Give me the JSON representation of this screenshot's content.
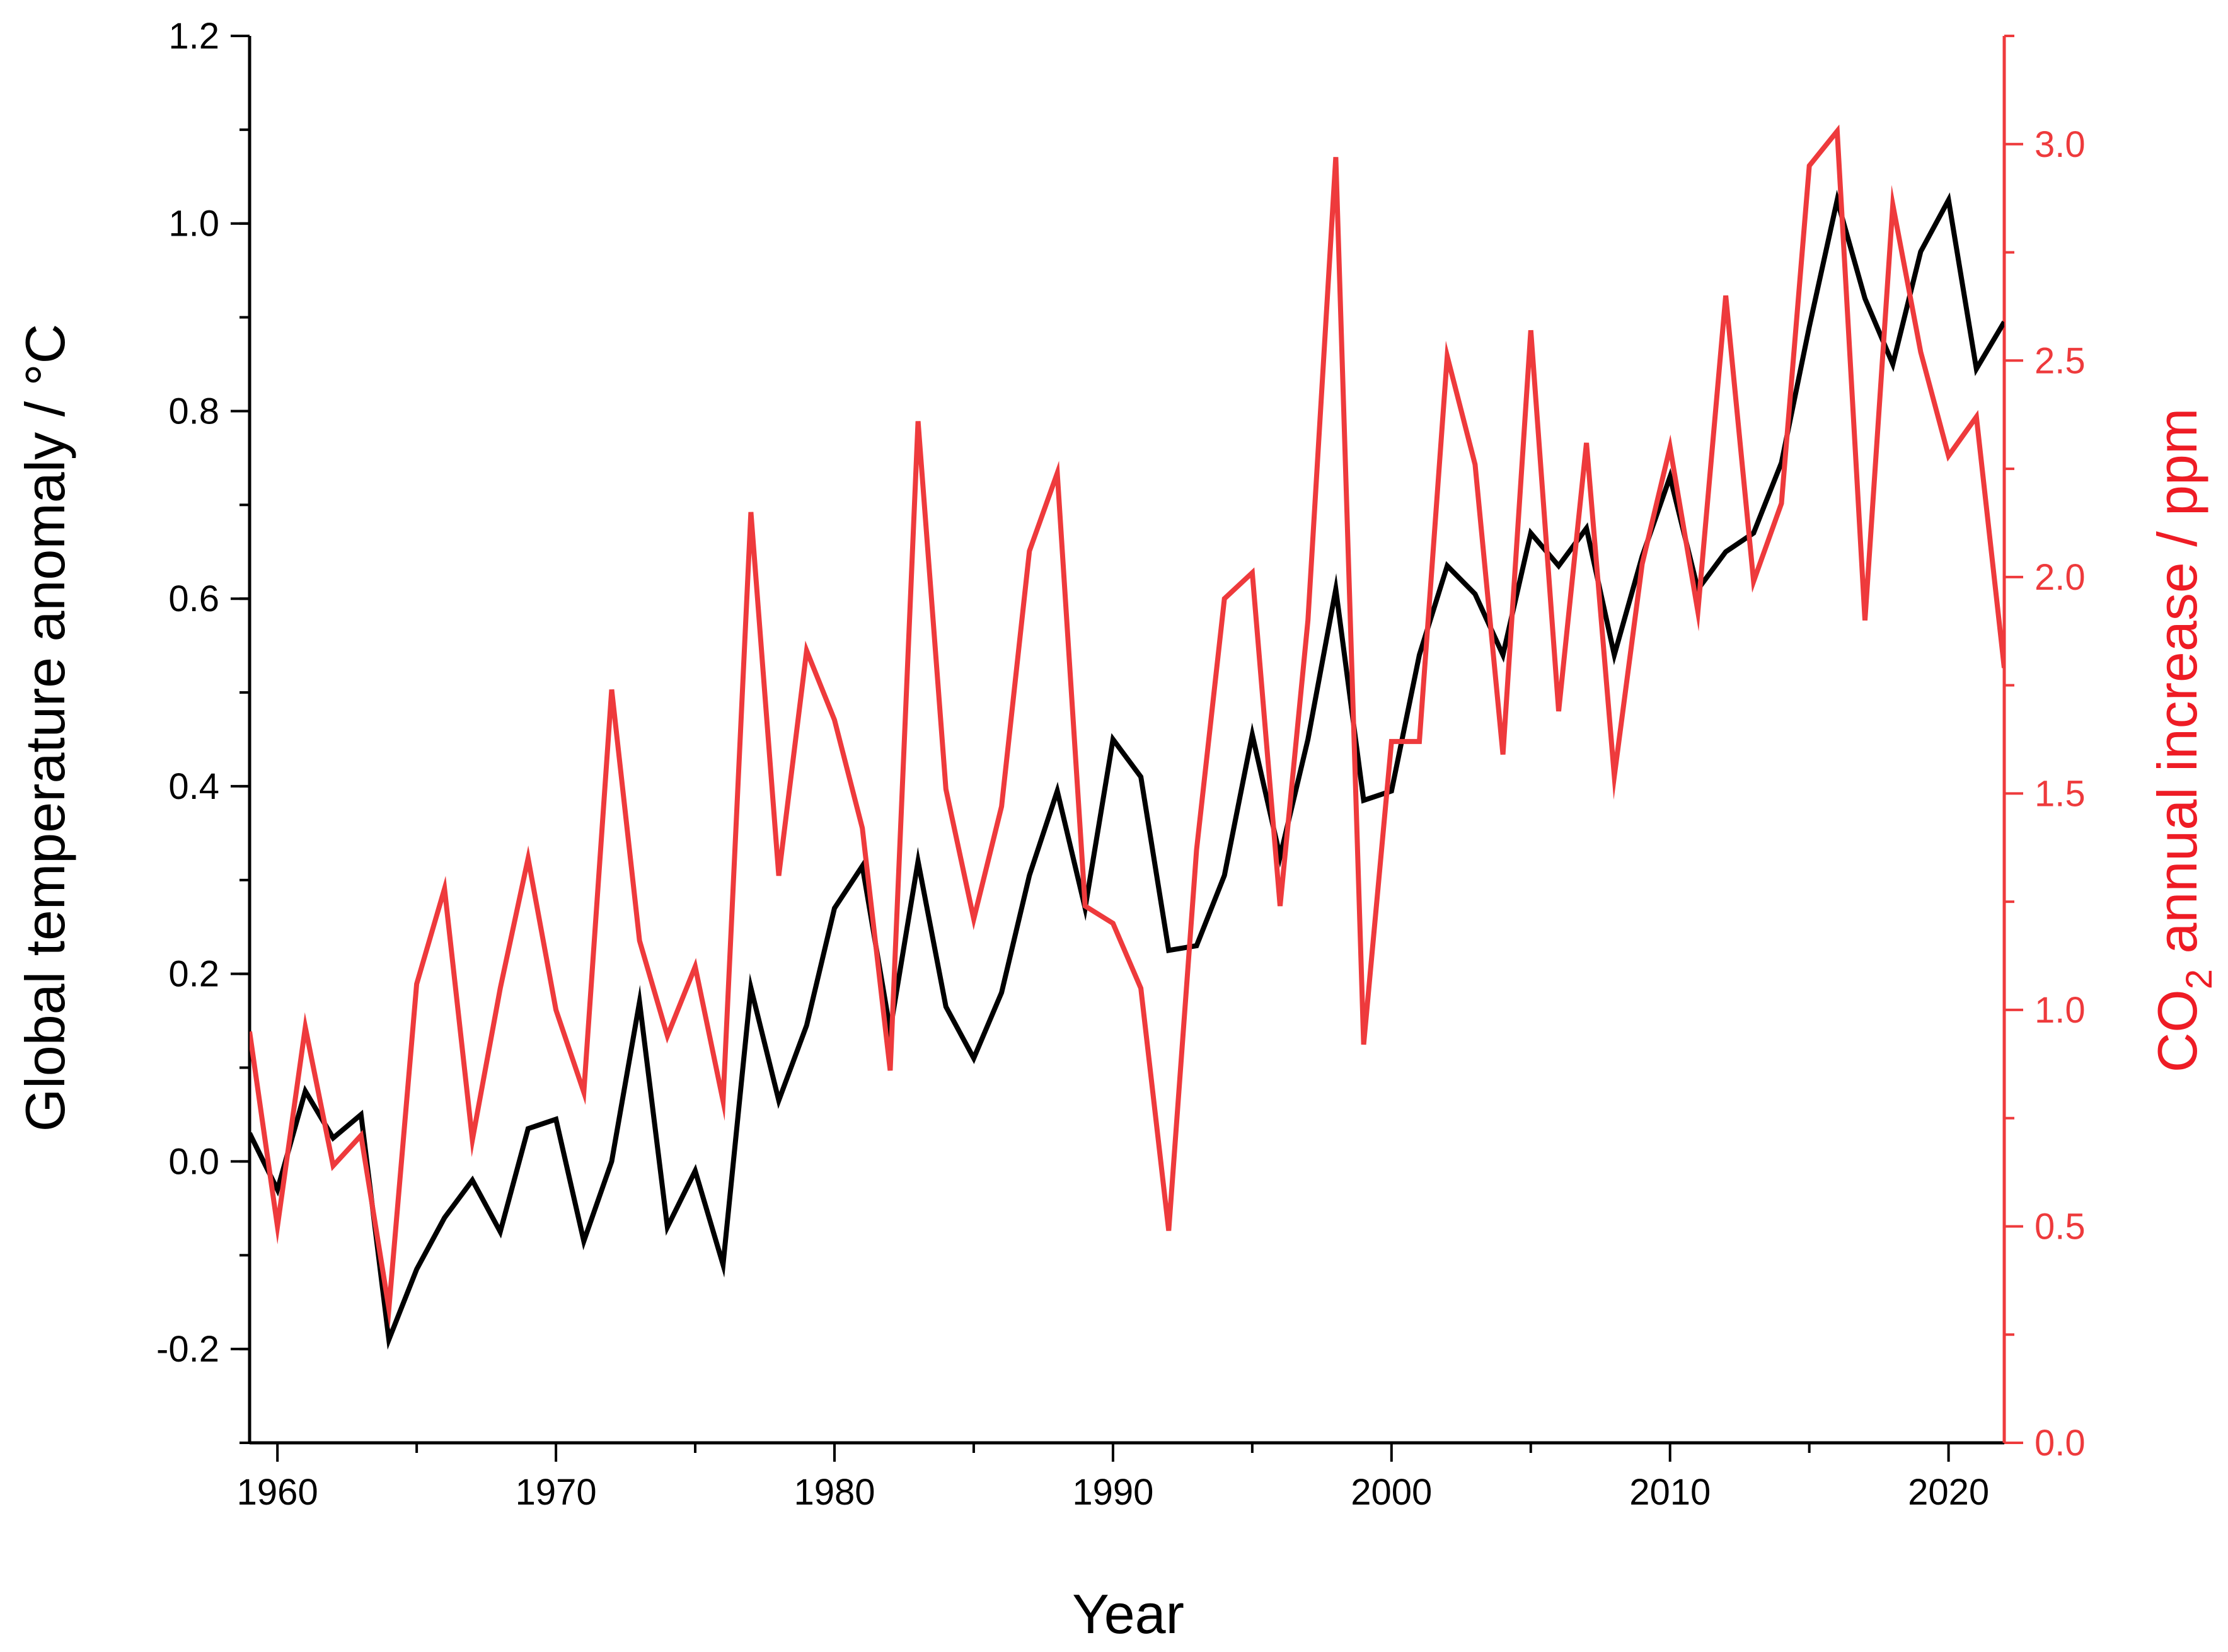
{
  "chart_data": {
    "type": "line",
    "title": "",
    "xlabel": "Year",
    "ylabel_left": "Global temperature anomaly / °C",
    "ylabel_right": {
      "prefix": "CO",
      "subscript": "2",
      "suffix": " annual increase / ppm"
    },
    "xlim": [
      1959,
      2022
    ],
    "ylim_left": [
      -0.3,
      1.2
    ],
    "ylim_right": [
      0.0,
      3.25
    ],
    "x_ticks": [
      1960,
      1970,
      1980,
      1990,
      2000,
      2010,
      2020
    ],
    "x_tick_labels": [
      "1960",
      "1970",
      "1980",
      "1990",
      "2000",
      "2010",
      "2020"
    ],
    "y_left_ticks": [
      -0.2,
      0.0,
      0.2,
      0.4,
      0.6,
      0.8,
      1.0,
      1.2
    ],
    "y_left_tick_labels": [
      "-0.2",
      "0.0",
      "0.2",
      "0.4",
      "0.6",
      "0.8",
      "1.0",
      "1.2"
    ],
    "y_right_ticks": [
      0.0,
      0.5,
      1.0,
      1.5,
      2.0,
      2.5,
      3.0
    ],
    "y_right_tick_labels": [
      "0.0",
      "0.5",
      "1.0",
      "1.5",
      "2.0",
      "2.5",
      "3.0"
    ],
    "grid": false,
    "legend": "none",
    "x": [
      1959,
      1960,
      1961,
      1962,
      1963,
      1964,
      1965,
      1966,
      1967,
      1968,
      1969,
      1970,
      1971,
      1972,
      1973,
      1974,
      1975,
      1976,
      1977,
      1978,
      1979,
      1980,
      1981,
      1982,
      1983,
      1984,
      1985,
      1986,
      1987,
      1988,
      1989,
      1990,
      1991,
      1992,
      1993,
      1994,
      1995,
      1996,
      1997,
      1998,
      1999,
      2000,
      2001,
      2002,
      2003,
      2004,
      2005,
      2006,
      2007,
      2008,
      2009,
      2010,
      2011,
      2012,
      2013,
      2014,
      2015,
      2016,
      2017,
      2018,
      2019,
      2020,
      2021,
      2022
    ],
    "series": [
      {
        "name": "Global temperature anomaly",
        "axis": "left",
        "color": "#000000",
        "values": [
          0.03,
          -0.03,
          0.075,
          0.025,
          0.05,
          -0.19,
          -0.115,
          -0.06,
          -0.02,
          -0.075,
          0.035,
          0.045,
          -0.085,
          0.0,
          0.17,
          -0.07,
          -0.01,
          -0.11,
          0.185,
          0.065,
          0.145,
          0.27,
          0.315,
          0.14,
          0.32,
          0.165,
          0.11,
          0.18,
          0.305,
          0.395,
          0.27,
          0.45,
          0.41,
          0.225,
          0.23,
          0.305,
          0.455,
          0.325,
          0.45,
          0.61,
          0.385,
          0.395,
          0.54,
          0.635,
          0.605,
          0.54,
          0.67,
          0.635,
          0.675,
          0.54,
          0.645,
          0.73,
          0.61,
          0.65,
          0.67,
          0.745,
          0.89,
          1.025,
          0.92,
          0.85,
          0.97,
          1.025,
          0.845,
          0.895
        ]
      },
      {
        "name": "CO2 annual increase",
        "axis": "right",
        "color": "#ee3a3c",
        "values": [
          0.95,
          0.5,
          0.96,
          0.64,
          0.71,
          0.31,
          1.06,
          1.28,
          0.7,
          1.05,
          1.35,
          1.0,
          0.81,
          1.74,
          1.16,
          0.94,
          1.1,
          0.79,
          2.15,
          1.31,
          1.83,
          1.67,
          1.42,
          0.86,
          2.36,
          1.51,
          1.21,
          1.47,
          2.06,
          2.24,
          1.24,
          1.2,
          1.05,
          0.49,
          1.37,
          1.95,
          2.01,
          1.24,
          1.9,
          2.97,
          0.92,
          1.62,
          1.62,
          2.51,
          2.26,
          1.59,
          2.57,
          1.69,
          2.31,
          1.54,
          2.03,
          2.3,
          1.92,
          2.65,
          1.99,
          2.17,
          2.95,
          3.03,
          1.9,
          2.86,
          2.52,
          2.28,
          2.37,
          1.79
        ]
      }
    ]
  }
}
